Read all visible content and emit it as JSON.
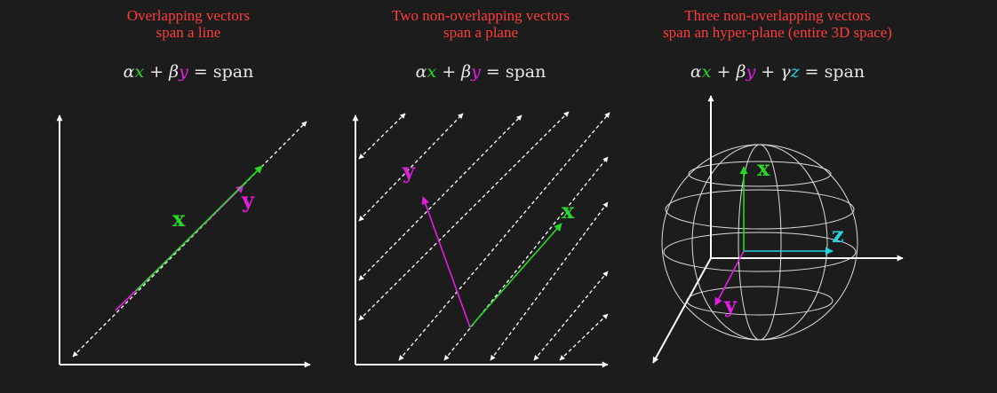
{
  "panels": [
    {
      "title_line1": "Overlapping vectors",
      "title_line2": "span a line",
      "equation": {
        "a": "α",
        "x": "x",
        "plus1": " + ",
        "b": "β",
        "y": "y",
        "eq": " = ",
        "rhs": "span"
      },
      "vector_labels": {
        "x": "x",
        "y": "y"
      }
    },
    {
      "title_line1": "Two non-overlapping vectors",
      "title_line2": "span a plane",
      "equation": {
        "a": "α",
        "x": "x",
        "plus1": " + ",
        "b": "β",
        "y": "y",
        "eq": " = ",
        "rhs": "span"
      },
      "vector_labels": {
        "x": "x",
        "y": "y"
      }
    },
    {
      "title_line1": "Three non-overlapping vectors",
      "title_line2": "span an hyper-plane (entire 3D space)",
      "equation": {
        "a": "α",
        "x": "x",
        "plus1": " + ",
        "b": "β",
        "y": "y",
        "plus2": " + ",
        "g": "γ",
        "z": "z",
        "eq": " = ",
        "rhs": "span"
      },
      "vector_labels": {
        "x": "x",
        "y": "y",
        "z": "z"
      }
    }
  ],
  "colors": {
    "background": "#1c1c1c",
    "title": "#ff3c3c",
    "vector_x": "#29d629",
    "vector_y": "#e21ee2",
    "vector_z": "#26d4e0",
    "axes": "#ffffff"
  }
}
